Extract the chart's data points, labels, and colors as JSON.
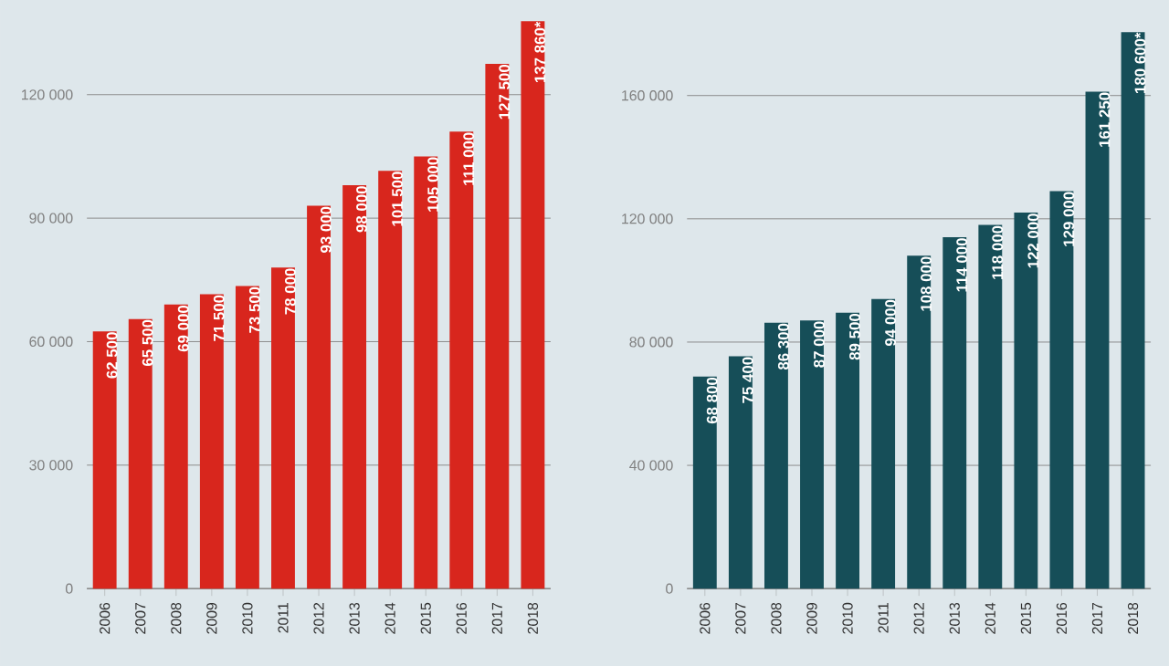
{
  "chart_data": [
    {
      "type": "bar",
      "categories": [
        "2006",
        "2007",
        "2008",
        "2009",
        "2010",
        "2011",
        "2012",
        "2013",
        "2014",
        "2015",
        "2016",
        "2017",
        "2018"
      ],
      "values": [
        62500,
        65500,
        69000,
        71500,
        73500,
        78000,
        93000,
        98000,
        101500,
        105000,
        111000,
        127500,
        137860
      ],
      "value_labels": [
        "62 500",
        "65 500",
        "69 000",
        "71 500",
        "73 500",
        "78 000",
        "93 000",
        "98 000",
        "101 500",
        "105 000",
        "111 000",
        "127 500",
        "137 860*"
      ],
      "color": "#d8261d",
      "ylim": [
        0,
        143000
      ],
      "yticks": [
        0,
        {
          "value": 30000,
          "label": "30 000"
        },
        {
          "value": 60000,
          "label": "60 000"
        },
        {
          "value": 90000,
          "label": "90 000"
        },
        {
          "value": 120000,
          "label": "120 000"
        }
      ],
      "grid": "y"
    },
    {
      "type": "bar",
      "categories": [
        "2006",
        "2007",
        "2008",
        "2009",
        "2010",
        "2011",
        "2012",
        "2013",
        "2014",
        "2015",
        "2016",
        "2017",
        "2018"
      ],
      "values": [
        68800,
        75400,
        86300,
        87000,
        89500,
        94000,
        108000,
        114000,
        118000,
        122000,
        129000,
        161250,
        180600
      ],
      "value_labels": [
        "68 800",
        "75 400",
        "86 300",
        "87 000",
        "89 500",
        "94 000",
        "108 000",
        "114 000",
        "118 000",
        "122 000",
        "129 000",
        "161 250",
        "180 600*"
      ],
      "color": "#164e58",
      "ylim": [
        0,
        191000
      ],
      "yticks": [
        0,
        {
          "value": 40000,
          "label": "40 000"
        },
        {
          "value": 80000,
          "label": "80 000"
        },
        {
          "value": 120000,
          "label": "120 000"
        },
        {
          "value": 160000,
          "label": "160 000"
        }
      ],
      "grid": "y"
    }
  ]
}
